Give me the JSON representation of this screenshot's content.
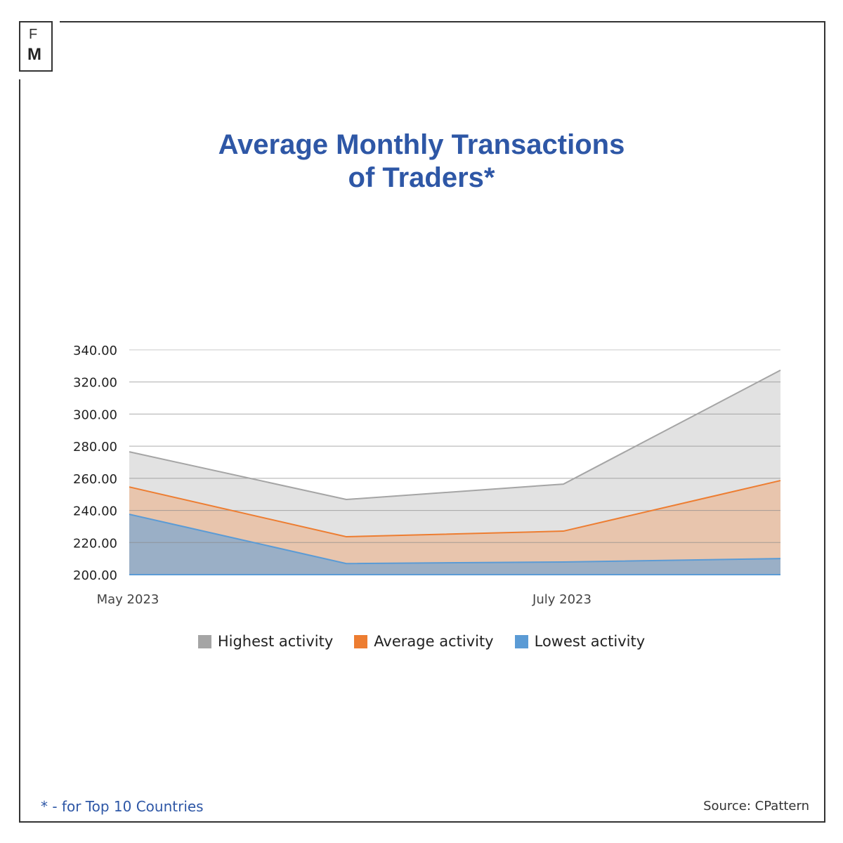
{
  "logo": {
    "top": "F",
    "bottom": "M"
  },
  "title": {
    "line1": "Average Monthly Transactions",
    "line2": "of Traders*"
  },
  "chart_data": {
    "type": "area",
    "title": "Average Monthly Transactions of Traders*",
    "categories": [
      "May 2023",
      "",
      "July 2023",
      ""
    ],
    "x_tick_labels": [
      "May 2023",
      "July 2023"
    ],
    "y_ticks": [
      "200.00",
      "220.00",
      "240.00",
      "260.00",
      "280.00",
      "300.00",
      "320.00",
      "340.00"
    ],
    "ylim": [
      200,
      340
    ],
    "grid": true,
    "legend_position": "bottom",
    "series": [
      {
        "name": "Highest activity",
        "color": "#a5a5a5",
        "fill": "#e2e2e2",
        "values": [
          276.5,
          246.8,
          256.4,
          327.3
        ]
      },
      {
        "name": "Average activity",
        "color": "#ed7d31",
        "fill": "#e8c5ad",
        "values": [
          254.6,
          223.6,
          227.1,
          258.6
        ]
      },
      {
        "name": "Lowest activity",
        "color": "#5b9bd5",
        "fill": "#9aafc6",
        "values": [
          237.6,
          206.9,
          207.9,
          210.0
        ]
      }
    ]
  },
  "footnote": "* - for Top 10 Countries",
  "source": "Source: CPattern"
}
